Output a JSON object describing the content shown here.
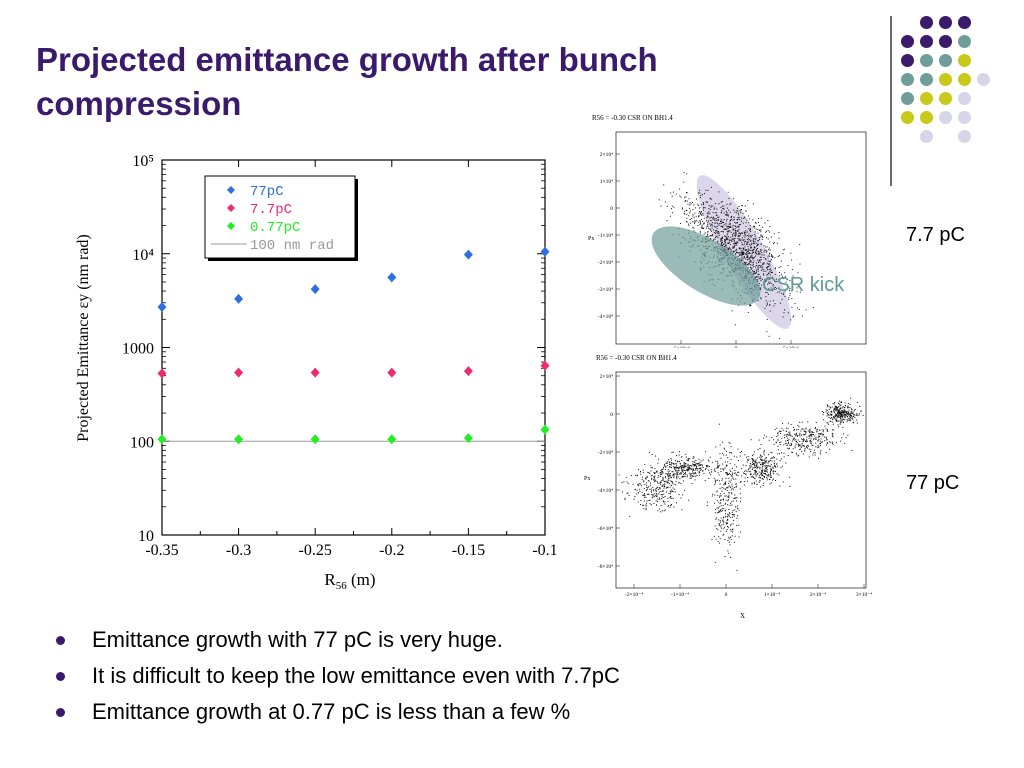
{
  "slide": {
    "title": "Projected emittance growth after bunch\ncompression",
    "side_label_top": "7.7 pC",
    "side_label_bottom": "77 pC",
    "csr_label": "CSR kick",
    "bullets": [
      "Emittance growth with 77 pC is very huge.",
      "It is difficult to keep the low emittance even with 7.7pC",
      "Emittance growth at 0.77 pC is less than a few %"
    ],
    "accent_color": "#3a1a6b",
    "dot_colors": {
      "purple": "#3a1a6b",
      "teal": "#6f9e9a",
      "yellow": "#c9c91c",
      "lavender": "#d6d6e8"
    }
  },
  "phase_space": {
    "top": {
      "heading": "R56 = -0.30 CSR ON BH1.4",
      "ylabel": "Px",
      "yticks": [
        "2×10⁴",
        "1×10⁴",
        "0",
        "-1×10⁴",
        "-2×10⁴",
        "-3×10⁴",
        "-4×10⁴"
      ],
      "xticks": [
        "-5×10⁻⁶",
        "0",
        "5×10⁻⁶"
      ]
    },
    "bottom": {
      "heading": "R56 = -0.30 CSR ON BH1.4",
      "ylabel": "Px",
      "xlabel": "X",
      "yticks": [
        "2×10⁴",
        "0",
        "-2×10⁴",
        "-4×10⁴",
        "-6×10⁴",
        "-8×10⁴"
      ],
      "xticks": [
        "-2×10⁻⁴",
        "-1×10⁻⁴",
        "0",
        "1×10⁻⁴",
        "2×10⁻⁴",
        "3×10⁻⁴"
      ]
    }
  },
  "chart_data": {
    "type": "scatter",
    "title": "",
    "xlabel": "R56 (m)",
    "ylabel": "Projected Emittance εy (nm rad)",
    "x": [
      -0.35,
      -0.3,
      -0.25,
      -0.2,
      -0.15,
      -0.1
    ],
    "xlim": [
      -0.35,
      -0.1
    ],
    "ylim": [
      10,
      100000
    ],
    "yscale": "log",
    "xtick_labels": [
      "-0.35",
      "-0.3",
      "-0.25",
      "-0.2",
      "-0.15",
      "-0.1"
    ],
    "ytick_labels": [
      "10",
      "100",
      "1000",
      "10⁴",
      "10⁵"
    ],
    "legend_position": "top-left",
    "series": [
      {
        "name": "77pC",
        "color": "#2f6fdf",
        "values": [
          2700,
          3300,
          4200,
          5600,
          9800,
          10500
        ]
      },
      {
        "name": "7.7pC",
        "color": "#ee2a70",
        "values": [
          530,
          540,
          540,
          540,
          560,
          640
        ]
      },
      {
        "name": "0.77pC",
        "color": "#22ee22",
        "values": [
          105,
          105,
          105,
          105,
          108,
          133
        ]
      }
    ],
    "reference_line": {
      "name": "100 nm rad",
      "value": 100,
      "color": "#999999"
    }
  }
}
